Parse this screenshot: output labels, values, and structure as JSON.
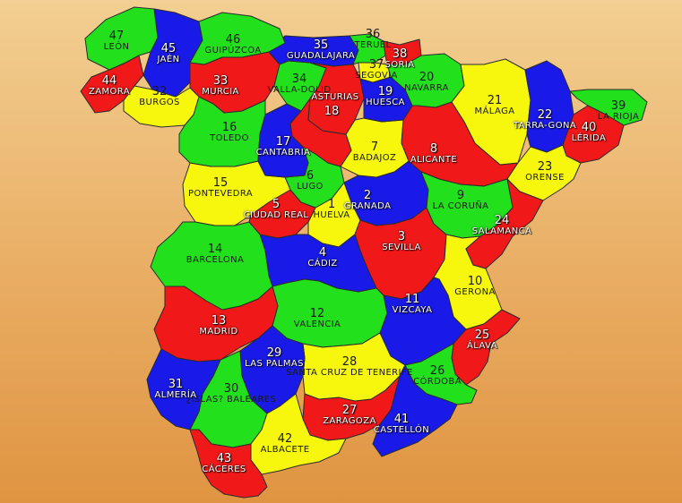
{
  "colors": {
    "green": "#22e11c",
    "blue": "#1919e8",
    "red": "#f01818",
    "yellow": "#f7f70d",
    "border": "#2b2b2b"
  },
  "provinces": [
    {
      "id": "1",
      "number": "1",
      "name": "HUELVA",
      "color": "yellow"
    },
    {
      "id": "2",
      "number": "2",
      "name": "GRANADA",
      "color": "blue"
    },
    {
      "id": "3",
      "number": "3",
      "name": "SEVILLA",
      "color": "red"
    },
    {
      "id": "4",
      "number": "4",
      "name": "CÁDIZ",
      "color": "blue"
    },
    {
      "id": "5",
      "number": "5",
      "name": "CIUDAD REAL",
      "color": "red"
    },
    {
      "id": "6",
      "number": "6",
      "name": "LUGO",
      "color": "green"
    },
    {
      "id": "7",
      "number": "7",
      "name": "BADAJOZ",
      "color": "yellow"
    },
    {
      "id": "8",
      "number": "8",
      "name": "ALICANTE",
      "color": "red"
    },
    {
      "id": "9",
      "number": "9",
      "name": "LA CORUÑA",
      "color": "green"
    },
    {
      "id": "10",
      "number": "10",
      "name": "GERONA",
      "color": "yellow"
    },
    {
      "id": "11",
      "number": "11",
      "name": "VIZCAYA",
      "color": "blue"
    },
    {
      "id": "12",
      "number": "12",
      "name": "VALENCIA",
      "color": "green"
    },
    {
      "id": "13",
      "number": "13",
      "name": "MADRID",
      "color": "red"
    },
    {
      "id": "14",
      "number": "14",
      "name": "BARCELONA",
      "color": "green"
    },
    {
      "id": "15",
      "number": "15",
      "name": "PONTEVEDRA",
      "color": "yellow"
    },
    {
      "id": "16",
      "number": "16",
      "name": "TOLEDO",
      "color": "green"
    },
    {
      "id": "17",
      "number": "17",
      "name": "CANTABRIA",
      "color": "blue"
    },
    {
      "id": "18",
      "number": "18",
      "name": "",
      "color": "red"
    },
    {
      "id": "19",
      "number": "19",
      "name": "HUESCA",
      "color": "blue"
    },
    {
      "id": "20",
      "number": "20",
      "name": "NAVARRA",
      "color": "green"
    },
    {
      "id": "21",
      "number": "21",
      "name": "MÁLAGA",
      "color": "yellow"
    },
    {
      "id": "22",
      "number": "22",
      "name": "TARRA-GONA",
      "color": "blue"
    },
    {
      "id": "23",
      "number": "23",
      "name": "ORENSE",
      "color": "yellow"
    },
    {
      "id": "24",
      "number": "24",
      "name": "SALAMANCA",
      "color": "red"
    },
    {
      "id": "25",
      "number": "25",
      "name": "ÁLAVA",
      "color": "red"
    },
    {
      "id": "26",
      "number": "26",
      "name": "CÓRDOBA",
      "color": "green"
    },
    {
      "id": "27",
      "number": "27",
      "name": "ZARAGOZA",
      "color": "red"
    },
    {
      "id": "28",
      "number": "28",
      "name": "SANTA CRUZ DE TENERIFE",
      "color": "yellow"
    },
    {
      "id": "29",
      "number": "29",
      "name": "LAS PALMAS",
      "color": "blue"
    },
    {
      "id": "30",
      "number": "30",
      "name": "¿ISLAS? BALEARES",
      "color": "green"
    },
    {
      "id": "31",
      "number": "31",
      "name": "ALMERÍA",
      "color": "blue"
    },
    {
      "id": "32",
      "number": "32",
      "name": "BURGOS",
      "color": "yellow"
    },
    {
      "id": "33",
      "number": "33",
      "name": "MURCIA",
      "color": "red"
    },
    {
      "id": "34",
      "number": "34",
      "name": "VALLA-DOLID",
      "color": "green"
    },
    {
      "id": "35",
      "number": "35",
      "name": "GUADALAJARA",
      "color": "blue"
    },
    {
      "id": "36",
      "number": "36",
      "name": "TERUEL",
      "color": "green"
    },
    {
      "id": "37",
      "number": "37",
      "name": "SEGOVIA",
      "color": "yellow"
    },
    {
      "id": "38",
      "number": "38",
      "name": "SORIA",
      "color": "red"
    },
    {
      "id": "39",
      "number": "39",
      "name": "LA RIOJA",
      "color": "green"
    },
    {
      "id": "40",
      "number": "40",
      "name": "LÉRIDA",
      "color": "red"
    },
    {
      "id": "41",
      "number": "41",
      "name": "CASTELLÓN",
      "color": "blue"
    },
    {
      "id": "42",
      "number": "42",
      "name": "ALBACETE",
      "color": "yellow"
    },
    {
      "id": "43",
      "number": "43",
      "name": "CÁCERES",
      "color": "red"
    },
    {
      "id": "44",
      "number": "44",
      "name": "ZAMORA",
      "color": "red"
    },
    {
      "id": "45",
      "number": "45",
      "name": "JAÉN",
      "color": "blue"
    },
    {
      "id": "46",
      "number": "46",
      "name": "GUIPÚZCOA",
      "color": "green"
    },
    {
      "id": "47",
      "number": "47",
      "name": "LEÓN",
      "color": "green"
    },
    {
      "id": "A",
      "number": "",
      "name": "ASTURIAS",
      "color": "red"
    }
  ]
}
